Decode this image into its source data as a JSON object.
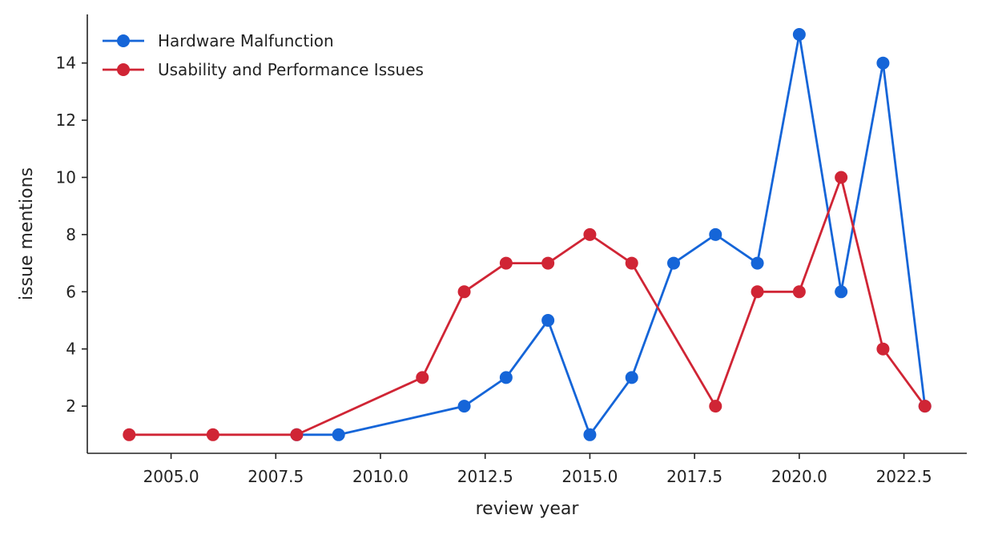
{
  "chart_data": {
    "type": "line",
    "xlabel": "review year",
    "ylabel": "issue mentions",
    "xlim": [
      2003.0,
      2024.0
    ],
    "ylim": [
      0.35,
      15.7
    ],
    "xticks": [
      2005.0,
      2007.5,
      2010.0,
      2012.5,
      2015.0,
      2017.5,
      2020.0,
      2022.5
    ],
    "xtick_labels": [
      "2005.0",
      "2007.5",
      "2010.0",
      "2012.5",
      "2015.0",
      "2017.5",
      "2020.0",
      "2022.5"
    ],
    "yticks": [
      2,
      4,
      6,
      8,
      10,
      12,
      14
    ],
    "ytick_labels": [
      "2",
      "4",
      "6",
      "8",
      "10",
      "12",
      "14"
    ],
    "grid": false,
    "legend_position": "top-left",
    "series": [
      {
        "name": "Hardware Malfunction",
        "color": "#1565d8",
        "x": [
          2008,
          2009,
          2012,
          2013,
          2014,
          2015,
          2016,
          2017,
          2018,
          2019,
          2020,
          2021,
          2022,
          2023
        ],
        "y": [
          1,
          1,
          2,
          3,
          5,
          1,
          3,
          7,
          8,
          7,
          15,
          6,
          14,
          2
        ]
      },
      {
        "name": "Usability and Performance Issues",
        "color": "#d02535",
        "x": [
          2004,
          2006,
          2008,
          2011,
          2012,
          2013,
          2014,
          2015,
          2016,
          2018,
          2019,
          2020,
          2021,
          2022,
          2023
        ],
        "y": [
          1,
          1,
          1,
          3,
          6,
          7,
          7,
          8,
          7,
          2,
          6,
          6,
          10,
          4,
          2
        ]
      }
    ]
  }
}
